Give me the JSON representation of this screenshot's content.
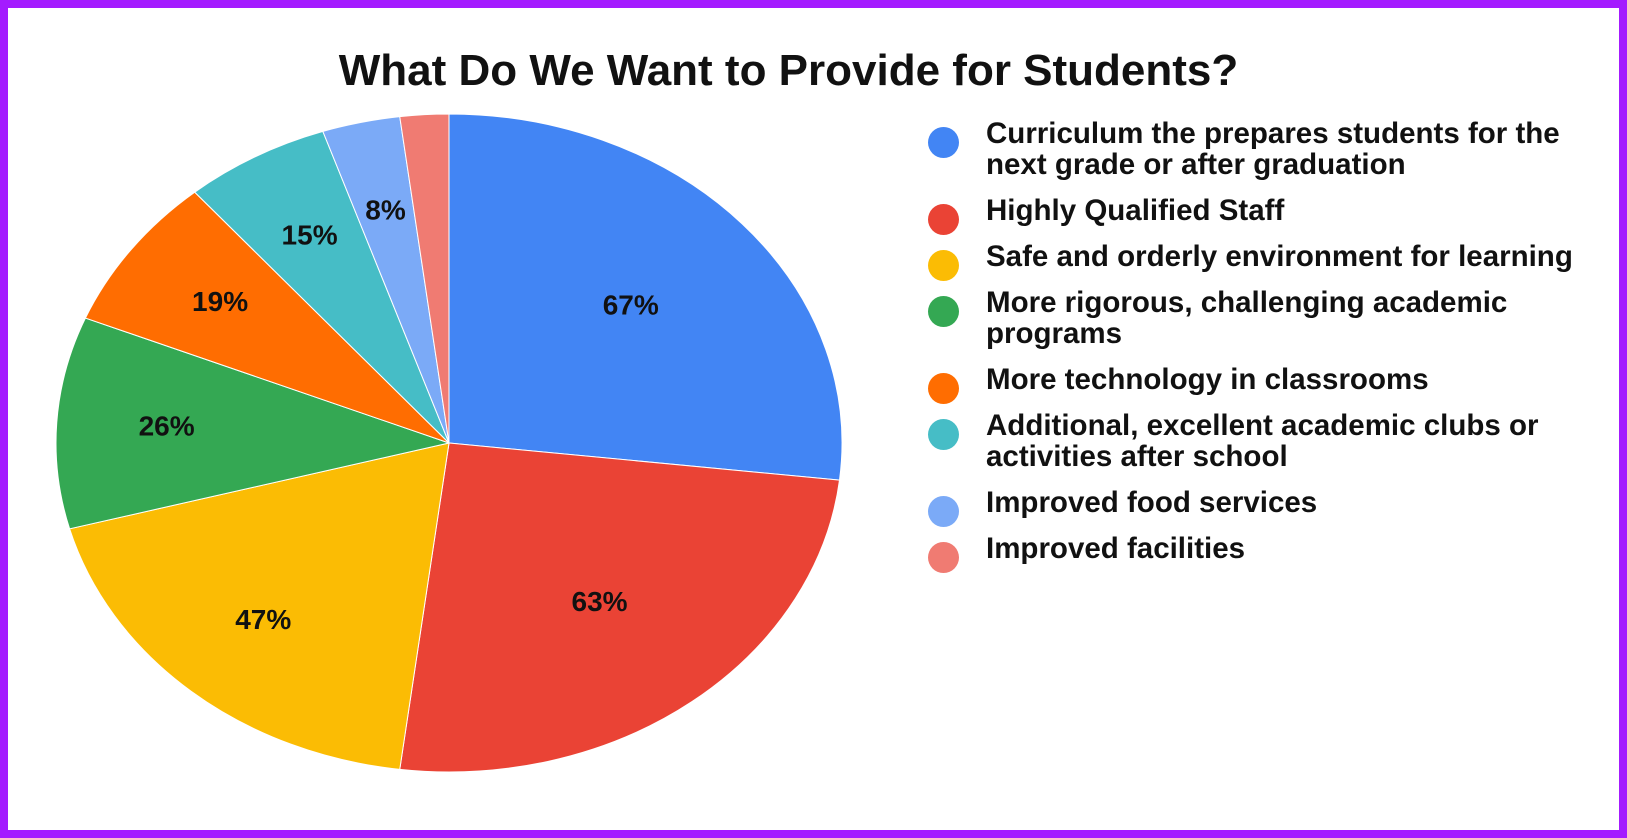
{
  "chart_data": {
    "type": "pie",
    "title": "What Do We Want to Provide for Students?",
    "legend_position": "right",
    "slices": [
      {
        "name": "Curriculum the prepares students for the next grade or after graduation",
        "value": 67,
        "label": "67%",
        "color": "#4285f4"
      },
      {
        "name": "Highly Qualified Staff",
        "value": 63,
        "label": "63%",
        "color": "#ea4335"
      },
      {
        "name": "Safe and orderly environment for learning",
        "value": 47,
        "label": "47%",
        "color": "#fbbc04"
      },
      {
        "name": "More rigorous, challenging academic programs",
        "value": 26,
        "label": "26%",
        "color": "#34a853"
      },
      {
        "name": "More technology in classrooms",
        "value": 19,
        "label": "19%",
        "color": "#ff6d01"
      },
      {
        "name": "Additional, excellent academic clubs or activities after school",
        "value": 15,
        "label": "15%",
        "color": "#46bdc6"
      },
      {
        "name": "Improved food services",
        "value": 8,
        "label": "8%",
        "color": "#7baaf7"
      },
      {
        "name": "Improved facilities",
        "value": 5,
        "label": "",
        "color": "#f07b72"
      }
    ]
  }
}
